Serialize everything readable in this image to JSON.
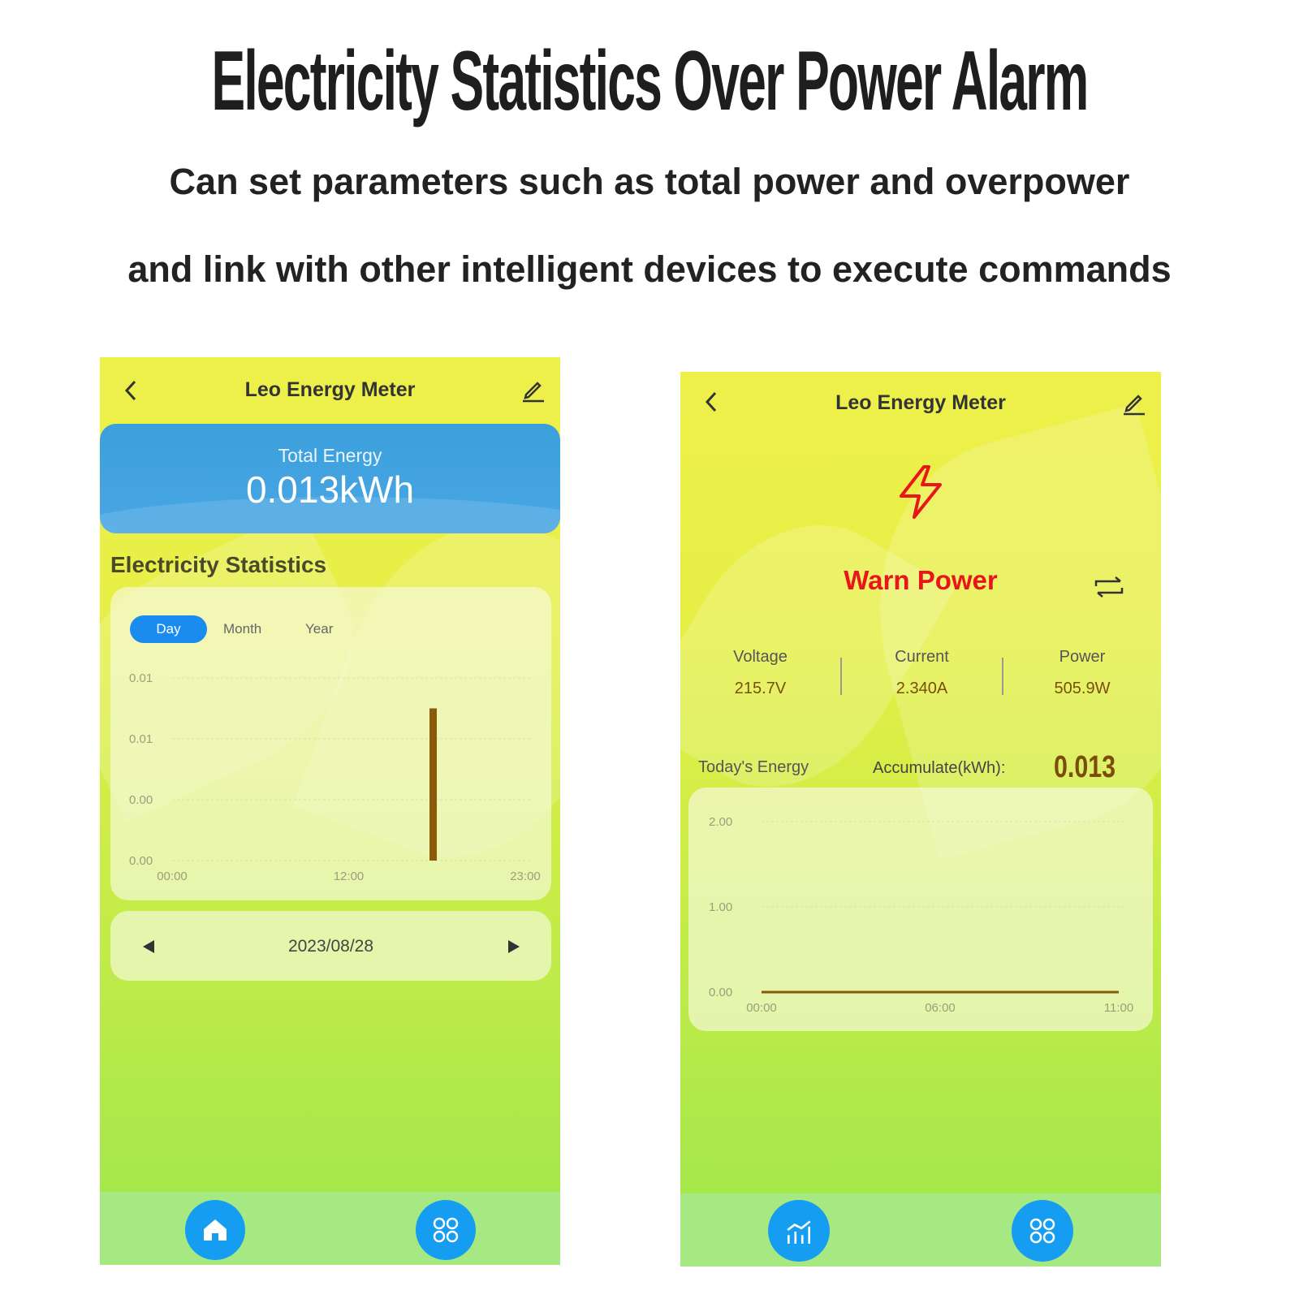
{
  "headline": "Electricity Statistics Over Power Alarm",
  "subline1": "Can set parameters such as total power and overpower",
  "subline2": "and link with other intelligent devices to execute commands",
  "left_screen": {
    "title": "Leo Energy Meter",
    "total_label": "Total Energy",
    "total_value": "0.013kWh",
    "section_title": "Electricity Statistics",
    "tabs": [
      {
        "label": "Day",
        "active": true
      },
      {
        "label": "Month",
        "active": false
      },
      {
        "label": "Year",
        "active": false
      }
    ],
    "date": "2023/08/28",
    "nav": [
      "home-icon",
      "grid-icon"
    ]
  },
  "right_screen": {
    "title": "Leo Energy Meter",
    "alarm_label": "Warn Power",
    "metrics": [
      {
        "label": "Voltage",
        "value": "215.7V"
      },
      {
        "label": "Current",
        "value": "2.340A"
      },
      {
        "label": "Power",
        "value": "505.9W"
      }
    ],
    "today_label": "Today's Energy",
    "accumulate_label": "Accumulate(kWh):",
    "accumulate_value": "0.013",
    "nav": [
      "chart-icon",
      "grid-icon"
    ]
  },
  "colors": {
    "accent_blue": "#159df2",
    "bar_brown": "#8a5a08",
    "warn_red": "#e8161b",
    "value_brown": "#7a4e0a"
  },
  "chart_data": [
    {
      "type": "bar",
      "x_ticks": [
        "00:00",
        "12:00",
        "23:00"
      ],
      "y_ticks": [
        "0.01",
        "0.01",
        "0.00",
        "0.00"
      ],
      "xlim": [
        0,
        23
      ],
      "ylim": [
        0,
        0.012
      ],
      "points": [
        {
          "x": 17,
          "y": 0.01
        }
      ]
    },
    {
      "type": "line",
      "x_ticks": [
        "00:00",
        "06:00",
        "11:00"
      ],
      "y_ticks": [
        "2.00",
        "1.00",
        "0.00"
      ],
      "xlim": [
        0,
        11
      ],
      "ylim": [
        0,
        2
      ],
      "points": [
        {
          "x": 0,
          "y": 0
        },
        {
          "x": 11,
          "y": 0
        }
      ]
    }
  ]
}
